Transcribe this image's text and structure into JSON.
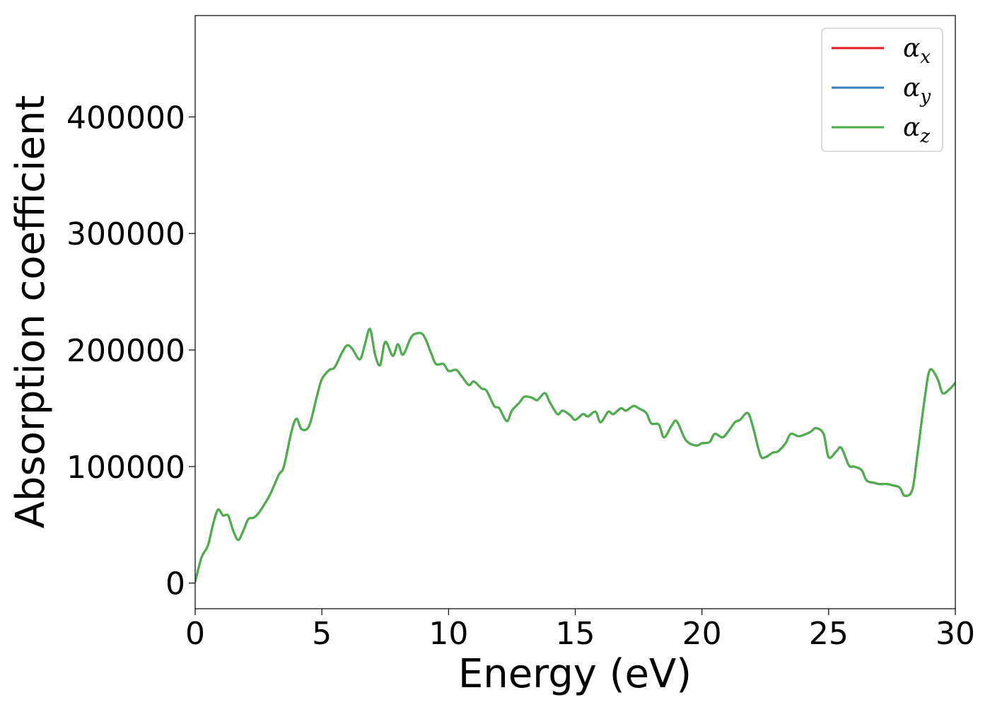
{
  "chart_data": {
    "type": "line",
    "xlabel": "Energy (eV)",
    "ylabel": "Absorption coefficient",
    "xlim": [
      0,
      30
    ],
    "ylim": [
      -22000,
      487000
    ],
    "xticks": [
      0,
      5,
      10,
      15,
      20,
      25,
      30
    ],
    "xtick_labels": [
      "0",
      "5",
      "10",
      "15",
      "20",
      "25",
      "30"
    ],
    "yticks": [
      0,
      100000,
      200000,
      300000,
      400000
    ],
    "ytick_labels": [
      "0",
      "100000",
      "200000",
      "300000",
      "400000"
    ],
    "grid": false,
    "legend_position": "top-right",
    "x": [
      0,
      0.25,
      0.5,
      0.7,
      0.9,
      1.1,
      1.3,
      1.5,
      1.7,
      1.9,
      2.1,
      2.3,
      2.5,
      2.8,
      3.0,
      3.3,
      3.5,
      3.8,
      4.0,
      4.2,
      4.5,
      4.8,
      5.0,
      5.3,
      5.5,
      5.8,
      6.0,
      6.2,
      6.5,
      6.7,
      6.9,
      7.1,
      7.3,
      7.5,
      7.8,
      8.0,
      8.2,
      8.5,
      8.7,
      9.0,
      9.3,
      9.5,
      9.8,
      10.0,
      10.3,
      10.5,
      10.8,
      11.0,
      11.3,
      11.5,
      11.8,
      12.0,
      12.3,
      12.5,
      12.8,
      13.0,
      13.3,
      13.5,
      13.8,
      14.0,
      14.3,
      14.5,
      14.8,
      15.0,
      15.3,
      15.5,
      15.8,
      16.0,
      16.3,
      16.5,
      16.8,
      17.0,
      17.3,
      17.5,
      17.8,
      18.0,
      18.3,
      18.5,
      18.8,
      19.0,
      19.3,
      19.5,
      19.8,
      20.0,
      20.3,
      20.5,
      20.8,
      21.0,
      21.3,
      21.5,
      21.8,
      22.0,
      22.3,
      22.5,
      22.8,
      23.0,
      23.3,
      23.5,
      23.8,
      24.0,
      24.3,
      24.5,
      24.8,
      25.0,
      25.3,
      25.5,
      25.8,
      26.0,
      26.3,
      26.5,
      26.8,
      27.0,
      27.3,
      27.5,
      27.8,
      28.0,
      28.3,
      28.5,
      28.8,
      29.0,
      29.3,
      29.5,
      29.8,
      30.0
    ],
    "series": [
      {
        "name": "α_x",
        "name_base": "α",
        "name_sub": "x",
        "color": "#e41a1c",
        "values": [
          1000,
          22000,
          32000,
          50000,
          63000,
          58000,
          58000,
          45000,
          37000,
          45000,
          55000,
          56000,
          60000,
          70000,
          78000,
          93000,
          100000,
          130000,
          141000,
          132000,
          135000,
          160000,
          175000,
          183000,
          185000,
          198000,
          204000,
          201000,
          192000,
          205000,
          218000,
          196000,
          187000,
          207000,
          195000,
          205000,
          196000,
          210000,
          214000,
          213000,
          198000,
          188000,
          188000,
          182000,
          183000,
          178000,
          170000,
          173000,
          167000,
          165000,
          152000,
          150000,
          139000,
          148000,
          155000,
          160000,
          159000,
          157000,
          163000,
          155000,
          145000,
          148000,
          144000,
          140000,
          145000,
          143000,
          147000,
          138000,
          147000,
          145000,
          150000,
          148000,
          152000,
          150000,
          146000,
          137000,
          136000,
          125000,
          135000,
          139000,
          125000,
          120000,
          118000,
          120000,
          121000,
          128000,
          125000,
          129000,
          138000,
          140000,
          146000,
          135000,
          110000,
          108000,
          112000,
          113000,
          120000,
          128000,
          126000,
          127000,
          130000,
          133000,
          128000,
          108000,
          113000,
          116000,
          101000,
          100000,
          97000,
          88000,
          86000,
          85000,
          85000,
          84000,
          82000,
          75000,
          80000,
          110000,
          160000,
          183000,
          175000,
          163000,
          167000,
          172000
        ]
      },
      {
        "name": "α_y",
        "name_base": "α",
        "name_sub": "y",
        "color": "#377eb8",
        "values": [
          1000,
          22000,
          32000,
          50000,
          63000,
          58000,
          58000,
          45000,
          37000,
          45000,
          55000,
          56000,
          60000,
          70000,
          78000,
          93000,
          100000,
          130000,
          141000,
          132000,
          135000,
          160000,
          175000,
          183000,
          185000,
          198000,
          204000,
          201000,
          192000,
          205000,
          218000,
          196000,
          187000,
          207000,
          195000,
          205000,
          196000,
          210000,
          214000,
          213000,
          198000,
          188000,
          188000,
          182000,
          183000,
          178000,
          170000,
          173000,
          167000,
          165000,
          152000,
          150000,
          139000,
          148000,
          155000,
          160000,
          159000,
          157000,
          163000,
          155000,
          145000,
          148000,
          144000,
          140000,
          145000,
          143000,
          147000,
          138000,
          147000,
          145000,
          150000,
          148000,
          152000,
          150000,
          146000,
          137000,
          136000,
          125000,
          135000,
          139000,
          125000,
          120000,
          118000,
          120000,
          121000,
          128000,
          125000,
          129000,
          138000,
          140000,
          146000,
          135000,
          110000,
          108000,
          112000,
          113000,
          120000,
          128000,
          126000,
          127000,
          130000,
          133000,
          128000,
          108000,
          113000,
          116000,
          101000,
          100000,
          97000,
          88000,
          86000,
          85000,
          85000,
          84000,
          82000,
          75000,
          80000,
          110000,
          160000,
          183000,
          175000,
          163000,
          167000,
          172000
        ]
      },
      {
        "name": "α_z",
        "name_base": "α",
        "name_sub": "z",
        "color": "#4daf4a",
        "values": [
          1000,
          22000,
          32000,
          50000,
          63000,
          58000,
          58000,
          45000,
          37000,
          45000,
          55000,
          56000,
          60000,
          70000,
          78000,
          93000,
          100000,
          130000,
          141000,
          132000,
          135000,
          160000,
          175000,
          183000,
          185000,
          198000,
          204000,
          201000,
          192000,
          205000,
          218000,
          196000,
          187000,
          207000,
          195000,
          205000,
          196000,
          210000,
          214000,
          213000,
          198000,
          188000,
          188000,
          182000,
          183000,
          178000,
          170000,
          173000,
          167000,
          165000,
          152000,
          150000,
          139000,
          148000,
          155000,
          160000,
          159000,
          157000,
          163000,
          155000,
          145000,
          148000,
          144000,
          140000,
          145000,
          143000,
          147000,
          138000,
          147000,
          145000,
          150000,
          148000,
          152000,
          150000,
          146000,
          137000,
          136000,
          125000,
          135000,
          139000,
          125000,
          120000,
          118000,
          120000,
          121000,
          128000,
          125000,
          129000,
          138000,
          140000,
          146000,
          135000,
          110000,
          108000,
          112000,
          113000,
          120000,
          128000,
          126000,
          127000,
          130000,
          133000,
          128000,
          108000,
          113000,
          116000,
          101000,
          100000,
          97000,
          88000,
          86000,
          85000,
          85000,
          84000,
          82000,
          75000,
          80000,
          110000,
          160000,
          183000,
          175000,
          163000,
          167000,
          172000
        ]
      }
    ]
  }
}
